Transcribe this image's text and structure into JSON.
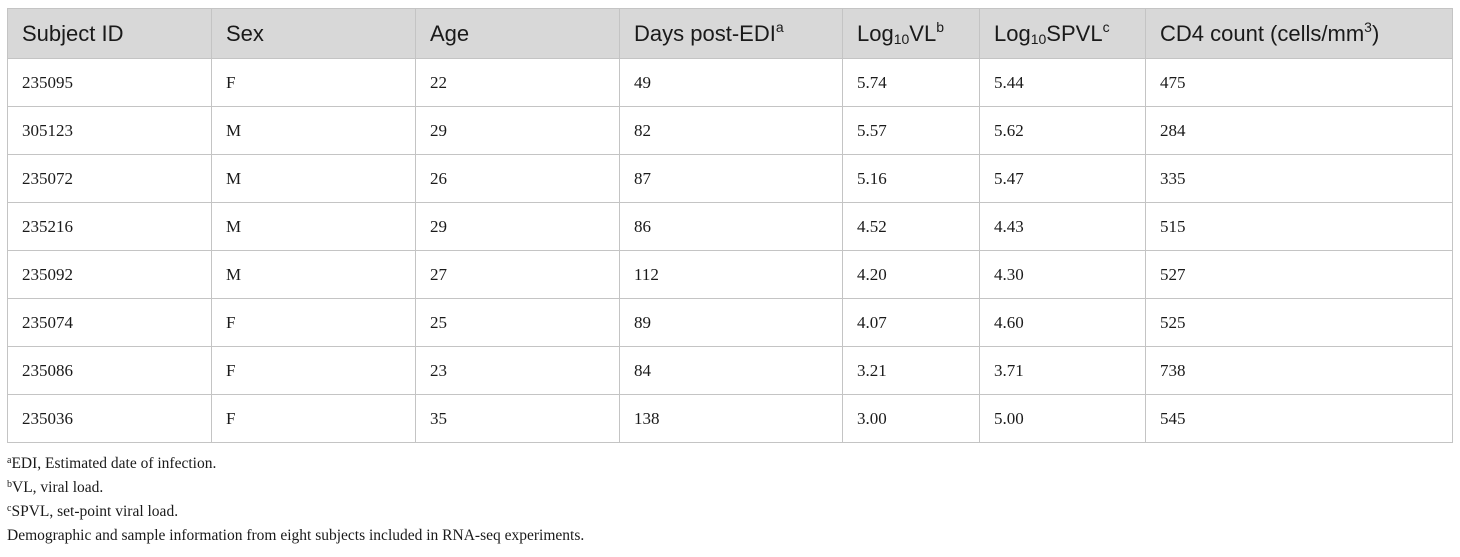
{
  "table": {
    "headers": [
      {
        "text": "Subject ID",
        "pre": "",
        "sub": "",
        "mid": "",
        "sup": ""
      },
      {
        "text": "Sex",
        "pre": "",
        "sub": "",
        "mid": "",
        "sup": ""
      },
      {
        "text": "Age",
        "pre": "",
        "sub": "",
        "mid": "",
        "sup": ""
      },
      {
        "text": "",
        "pre": "Days post-EDI",
        "sub": "",
        "mid": "",
        "sup": "a"
      },
      {
        "text": "",
        "pre": "Log",
        "sub": "10",
        "mid": "VL",
        "sup": "b"
      },
      {
        "text": "",
        "pre": "Log",
        "sub": "10",
        "mid": "SPVL",
        "sup": "c"
      },
      {
        "text": "",
        "pre": "CD4 count (cells/mm",
        "sub": "",
        "mid": "",
        "sup": "3",
        "post": ")"
      }
    ],
    "rows": [
      [
        "235095",
        "F",
        "22",
        "49",
        "5.74",
        "5.44",
        "475"
      ],
      [
        "305123",
        "M",
        "29",
        "82",
        "5.57",
        "5.62",
        "284"
      ],
      [
        "235072",
        "M",
        "26",
        "87",
        "5.16",
        "5.47",
        "335"
      ],
      [
        "235216",
        "M",
        "29",
        "86",
        "4.52",
        "4.43",
        "515"
      ],
      [
        "235092",
        "M",
        "27",
        "112",
        "4.20",
        "4.30",
        "527"
      ],
      [
        "235074",
        "F",
        "25",
        "89",
        "4.07",
        "4.60",
        "525"
      ],
      [
        "235086",
        "F",
        "23",
        "84",
        "3.21",
        "3.71",
        "738"
      ],
      [
        "235036",
        "F",
        "35",
        "138",
        "3.00",
        "5.00",
        "545"
      ]
    ]
  },
  "footnotes": [
    {
      "sup": "a",
      "text": "EDI, Estimated date of infection."
    },
    {
      "sup": "b",
      "text": "VL, viral load."
    },
    {
      "sup": "c",
      "text": "SPVL, set-point viral load."
    }
  ],
  "caption": "Demographic and sample information from eight subjects included in RNA-seq experiments."
}
